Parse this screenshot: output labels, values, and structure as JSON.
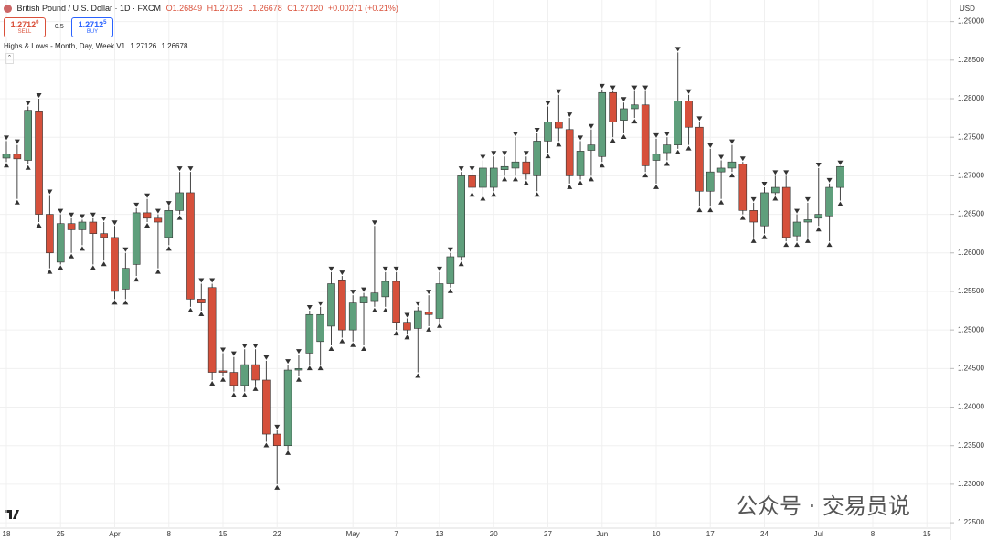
{
  "header": {
    "symbol": "British Pound / U.S. Dollar · 1D · FXCM",
    "ohlc": [
      "O1.26849",
      "H1.27126",
      "L1.26678",
      "C1.27120"
    ],
    "change": "+0.00271 (+0.21%)",
    "sell": {
      "price": "1.2712",
      "pip": "0",
      "label": "SELL"
    },
    "spread": "0.5",
    "buy": {
      "price": "1.2712",
      "pip": "5",
      "label": "BUY"
    },
    "indicator": "Highs & Lows - Month, Day, Week V1",
    "indicator_values": [
      "1.27126",
      "1.26678"
    ],
    "currency": "USD",
    "watermark": "公众号 · 交易员说"
  },
  "chart_data": {
    "type": "candlestick",
    "up_color": "#5f9f7c",
    "down_color": "#d6503b",
    "grid": true,
    "categories": [
      "18",
      null,
      null,
      null,
      null,
      "25",
      null,
      null,
      null,
      null,
      "Apr",
      null,
      null,
      null,
      null,
      "8",
      null,
      null,
      null,
      null,
      "15",
      null,
      null,
      null,
      null,
      "22",
      null,
      null,
      null,
      null,
      null,
      null,
      "May",
      null,
      null,
      null,
      "7",
      null,
      null,
      null,
      "13",
      null,
      null,
      null,
      null,
      "20",
      null,
      null,
      null,
      null,
      "27",
      null,
      null,
      null,
      null,
      "Jun",
      null,
      null,
      null,
      null,
      "10",
      null,
      null,
      null,
      null,
      "17",
      null,
      null,
      null,
      null,
      "24",
      null,
      null,
      null,
      null,
      "Jul",
      null,
      null,
      null,
      null,
      "8",
      null,
      null,
      null,
      null,
      "15"
    ],
    "open": [
      1.2723,
      1.2728,
      1.272,
      1.2783,
      1.265,
      1.2588,
      1.2638,
      1.263,
      1.264,
      1.2625,
      1.262,
      1.2553,
      1.2585,
      1.2652,
      1.2645,
      1.262,
      1.2655,
      1.2678,
      1.254,
      1.2555,
      1.2447,
      1.2445,
      1.2428,
      1.2455,
      1.2435,
      1.2365,
      1.235,
      1.2448,
      1.247,
      1.2485,
      1.2505,
      1.2565,
      1.25,
      1.2535,
      1.2538,
      1.2543,
      1.2563,
      1.251,
      1.2502,
      1.2523,
      1.2515,
      1.256,
      1.2595,
      1.27,
      1.2685,
      1.2685,
      1.2708,
      1.271,
      1.2718,
      1.27,
      1.2745,
      1.277,
      1.276,
      1.27,
      1.2733,
      1.2725,
      1.2808,
      1.2772,
      1.2787,
      1.2792,
      1.272,
      1.273,
      1.274,
      1.2797,
      1.2763,
      1.268,
      1.2705,
      1.271,
      1.2715,
      1.2655,
      1.2635,
      1.2678,
      1.2685,
      1.2622,
      1.264,
      1.2645,
      1.2648,
      1.26849,
      null,
      null,
      null,
      null,
      null,
      null,
      null,
      null
    ],
    "high": [
      1.2745,
      1.274,
      1.279,
      1.28,
      1.2675,
      1.265,
      1.2645,
      1.2643,
      1.2645,
      1.264,
      1.2635,
      1.26,
      1.2658,
      1.267,
      1.265,
      1.266,
      1.2705,
      1.2705,
      1.256,
      1.256,
      1.247,
      1.2465,
      1.2475,
      1.2475,
      1.246,
      1.237,
      1.2455,
      1.2468,
      1.2525,
      1.253,
      1.2575,
      1.257,
      1.2545,
      1.2548,
      1.2635,
      1.2575,
      1.2575,
      1.2515,
      1.253,
      1.2545,
      1.2575,
      1.26,
      1.2705,
      1.2705,
      1.272,
      1.2725,
      1.2725,
      1.275,
      1.2725,
      1.2755,
      1.279,
      1.2805,
      1.2775,
      1.2745,
      1.276,
      1.2812,
      1.281,
      1.2795,
      1.281,
      1.281,
      1.2748,
      1.275,
      1.286,
      1.2805,
      1.277,
      1.2735,
      1.272,
      1.274,
      1.2718,
      1.2665,
      1.2685,
      1.27,
      1.27,
      1.265,
      1.2665,
      1.271,
      1.269,
      1.27126,
      null,
      null,
      null,
      null,
      null,
      null,
      null,
      null
    ],
    "low": [
      1.2718,
      1.267,
      1.2715,
      1.264,
      1.258,
      1.2585,
      1.26,
      1.261,
      1.2585,
      1.259,
      1.254,
      1.254,
      1.257,
      1.264,
      1.258,
      1.261,
      1.265,
      1.253,
      1.2525,
      1.2435,
      1.244,
      1.242,
      1.242,
      1.2428,
      1.2355,
      1.23,
      1.2345,
      1.244,
      1.2455,
      1.2455,
      1.248,
      1.249,
      1.2485,
      1.248,
      1.253,
      1.253,
      1.25,
      1.2495,
      1.2445,
      1.2505,
      1.251,
      1.2555,
      1.259,
      1.268,
      1.2675,
      1.268,
      1.27,
      1.27,
      1.2695,
      1.268,
      1.273,
      1.2745,
      1.269,
      1.2695,
      1.27,
      1.2718,
      1.275,
      1.2755,
      1.2775,
      1.2705,
      1.269,
      1.272,
      1.2735,
      1.274,
      1.266,
      1.266,
      1.267,
      1.2705,
      1.265,
      1.262,
      1.2625,
      1.2675,
      1.2615,
      1.2615,
      1.262,
      1.2635,
      1.2615,
      1.26678,
      null,
      null,
      null,
      null,
      null,
      null,
      null,
      null
    ],
    "close": [
      1.2728,
      1.2722,
      1.2785,
      1.265,
      1.26,
      1.2638,
      1.263,
      1.264,
      1.2625,
      1.262,
      1.255,
      1.258,
      1.2652,
      1.2645,
      1.264,
      1.2655,
      1.2678,
      1.254,
      1.2535,
      1.2445,
      1.2445,
      1.2428,
      1.2455,
      1.2435,
      1.2365,
      1.235,
      1.2448,
      1.245,
      1.252,
      1.252,
      1.256,
      1.25,
      1.2535,
      1.2543,
      1.2548,
      1.2563,
      1.251,
      1.25,
      1.2525,
      1.252,
      1.256,
      1.2595,
      1.27,
      1.2685,
      1.271,
      1.271,
      1.2712,
      1.2718,
      1.2703,
      1.2745,
      1.277,
      1.2762,
      1.27,
      1.2732,
      1.274,
      1.2808,
      1.277,
      1.2787,
      1.2792,
      1.2713,
      1.2728,
      1.274,
      1.2797,
      1.2763,
      1.268,
      1.2705,
      1.271,
      1.2718,
      1.2655,
      1.264,
      1.2678,
      1.2685,
      1.262,
      1.264,
      1.2643,
      1.265,
      1.2685,
      1.2712,
      null,
      null,
      null,
      null,
      null,
      null,
      null,
      null
    ],
    "ylim": [
      1.2243,
      1.2928
    ],
    "yticks": [
      {
        "value": 1.29,
        "label": "1.29000"
      },
      {
        "value": 1.285,
        "label": "1.28500"
      },
      {
        "value": 1.28,
        "label": "1.28000"
      },
      {
        "value": 1.275,
        "label": "1.27500"
      },
      {
        "value": 1.27,
        "label": "1.27000"
      },
      {
        "value": 1.265,
        "label": "1.26500"
      },
      {
        "value": 1.26,
        "label": "1.26000"
      },
      {
        "value": 1.255,
        "label": "1.25500"
      },
      {
        "value": 1.25,
        "label": "1.25000"
      },
      {
        "value": 1.245,
        "label": "1.24500"
      },
      {
        "value": 1.24,
        "label": "1.24000"
      },
      {
        "value": 1.235,
        "label": "1.23500"
      },
      {
        "value": 1.23,
        "label": "1.23000"
      },
      {
        "value": 1.225,
        "label": "1.22500"
      }
    ]
  }
}
